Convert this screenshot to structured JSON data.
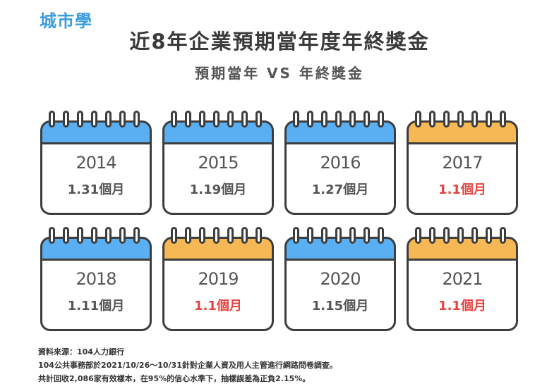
{
  "logo": "城市學",
  "chart_data": {
    "type": "table",
    "title": "近8年企業預期當年度年終獎金",
    "subtitle": "預期當年 VS 年終獎金",
    "unit": "個月",
    "cards": [
      {
        "year": "2014",
        "months": 1.31,
        "label": "1.31個月",
        "header": "blue",
        "highlight": false
      },
      {
        "year": "2015",
        "months": 1.19,
        "label": "1.19個月",
        "header": "blue",
        "highlight": false
      },
      {
        "year": "2016",
        "months": 1.27,
        "label": "1.27個月",
        "header": "blue",
        "highlight": false
      },
      {
        "year": "2017",
        "months": 1.1,
        "label": "1.1個月",
        "header": "orange",
        "highlight": true
      },
      {
        "year": "2018",
        "months": 1.11,
        "label": "1.11個月",
        "header": "blue",
        "highlight": false
      },
      {
        "year": "2019",
        "months": 1.1,
        "label": "1.1個月",
        "header": "orange",
        "highlight": true
      },
      {
        "year": "2020",
        "months": 1.15,
        "label": "1.15個月",
        "header": "blue",
        "highlight": false
      },
      {
        "year": "2021",
        "months": 1.1,
        "label": "1.1個月",
        "header": "orange",
        "highlight": true
      }
    ],
    "colors": {
      "blue_header": "#5aaff2",
      "orange_header": "#f6b854",
      "highlight_text": "#e8413f"
    }
  },
  "source": {
    "line1": "資料來源：104人力銀行",
    "line2": "104公共事務部於2021/10/26～10/31針對企業人資及用人主管進行網路問卷調查。",
    "line3": "共計回收2,086家有效樣本，在95%的信心水準下，抽樣誤差為正負2.15%。"
  }
}
